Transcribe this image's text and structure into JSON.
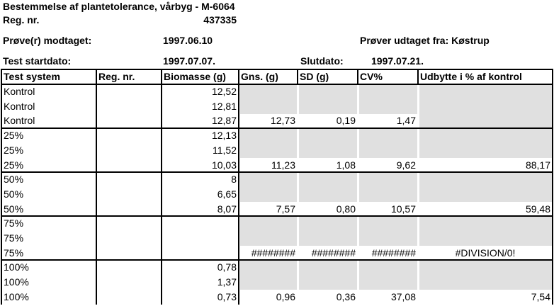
{
  "header": {
    "title": "Bestemmelse af plantetolerance, vårbyg - M-6064",
    "reg_label": "Reg. nr.",
    "reg_value": "437335",
    "received_label": "Prøve(r) modtaget:",
    "received_date": "1997.06.10",
    "taken_from": "Prøver udtaget fra: Køstrup",
    "start_label": "Test startdato:",
    "start_date": "1997.07.07.",
    "end_label": "Slutdato:",
    "end_date": "1997.07.21."
  },
  "table": {
    "columns": [
      "Test system",
      "Reg. nr.",
      "Biomasse (g)",
      "Gns. (g)",
      "SD (g)",
      "CV%",
      "Udbytte i % af kontrol"
    ],
    "rows": [
      [
        "Kontrol",
        null,
        "12,52",
        null,
        null,
        null,
        null
      ],
      [
        "Kontrol",
        null,
        "12,81",
        null,
        null,
        null,
        null
      ],
      [
        "Kontrol",
        null,
        "12,87",
        "12,73",
        "0,19",
        "1,47",
        null
      ],
      [
        "25%",
        null,
        "12,13",
        null,
        null,
        null,
        null
      ],
      [
        "25%",
        null,
        "11,52",
        null,
        null,
        null,
        null
      ],
      [
        "25%",
        null,
        "10,03",
        "11,23",
        "1,08",
        "9,62",
        "88,17"
      ],
      [
        "50%",
        null,
        "8",
        null,
        null,
        null,
        null
      ],
      [
        "50%",
        null,
        "6,65",
        null,
        null,
        null,
        null
      ],
      [
        "50%",
        null,
        "8,07",
        "7,57",
        "0,80",
        "10,57",
        "59,48"
      ],
      [
        "75%",
        null,
        null,
        null,
        null,
        null,
        null
      ],
      [
        "75%",
        null,
        null,
        null,
        null,
        null,
        null
      ],
      [
        "75%",
        null,
        null,
        "########",
        "########",
        "########",
        "#DIVISION/0!"
      ],
      [
        "100%",
        null,
        "0,78",
        null,
        null,
        null,
        null
      ],
      [
        "100%",
        null,
        "1,37",
        null,
        null,
        null,
        null
      ],
      [
        "100%",
        null,
        "0,73",
        "0,96",
        "0,36",
        "37,08",
        "7,54"
      ]
    ]
  }
}
